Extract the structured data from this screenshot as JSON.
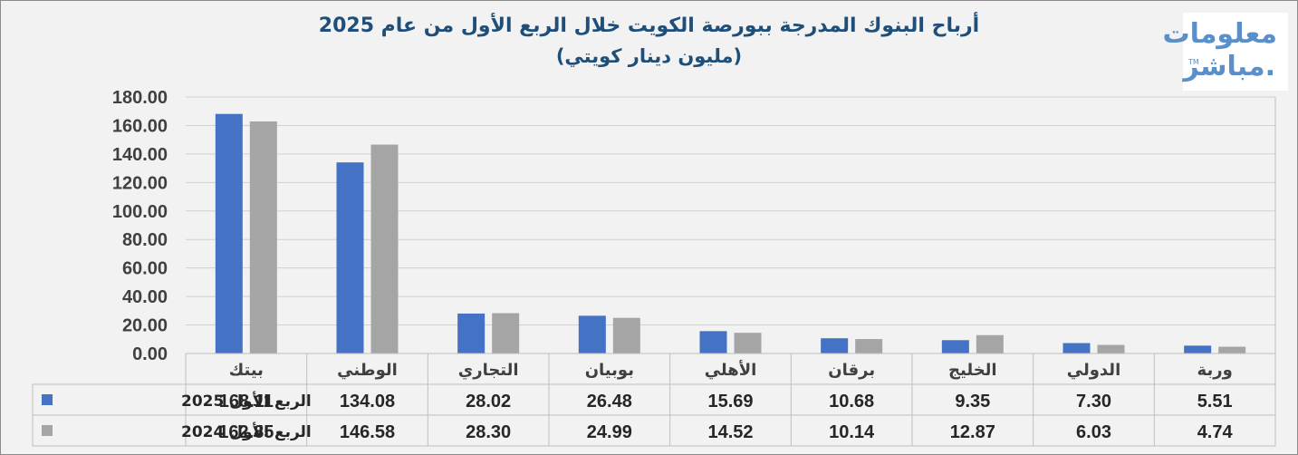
{
  "chart_data": {
    "type": "bar",
    "title": "أرباح البنوك المدرجة ببورصة الكويت خلال الربع الأول من عام 2025",
    "subtitle": "(مليون دينار كويتي)",
    "categories": [
      "بيتك",
      "الوطني",
      "التجاري",
      "بوبيان",
      "الأهلي",
      "برقان",
      "الخليج",
      "الدولي",
      "وربة"
    ],
    "series": [
      {
        "name": "الربع الأول 2025",
        "values": [
          168.11,
          134.08,
          28.02,
          26.48,
          15.69,
          10.68,
          9.35,
          7.3,
          5.51
        ],
        "labels": [
          "168.11",
          "134.08",
          "28.02",
          "26.48",
          "15.69",
          "10.68",
          "9.35",
          "7.30",
          "5.51"
        ],
        "color": "#4472c4"
      },
      {
        "name": "الربع الأول 2024",
        "values": [
          162.85,
          146.58,
          28.3,
          24.99,
          14.52,
          10.14,
          12.87,
          6.03,
          4.74
        ],
        "labels": [
          "162.85",
          "146.58",
          "28.30",
          "24.99",
          "14.52",
          "10.14",
          "12.87",
          "6.03",
          "4.74"
        ],
        "color": "#a5a5a5"
      }
    ],
    "ylim": [
      0,
      180
    ],
    "yticks": [
      "0.00",
      "20.00",
      "40.00",
      "60.00",
      "80.00",
      "100.00",
      "120.00",
      "140.00",
      "160.00",
      "180.00"
    ],
    "grid": true,
    "legend": "data-table"
  },
  "logo": {
    "line1": "معلومات",
    "line2": "مباشر.",
    "tm": "TM"
  }
}
